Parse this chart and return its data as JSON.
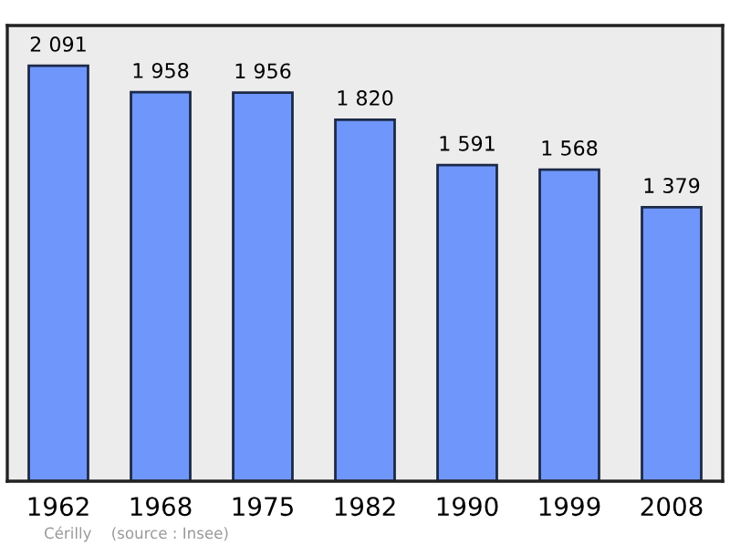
{
  "chart_data": {
    "type": "bar",
    "categories": [
      "1962",
      "1968",
      "1975",
      "1982",
      "1990",
      "1999",
      "2008"
    ],
    "values": [
      2091,
      1958,
      1956,
      1820,
      1591,
      1568,
      1379
    ],
    "value_labels": [
      "2 091",
      "1 958",
      "1 956",
      "1 820",
      "1 591",
      "1 568",
      "1 379"
    ],
    "color": "#6f96fa",
    "grid": false,
    "legend": false,
    "annotations": [
      "Cérilly    (source : Insee)"
    ]
  }
}
